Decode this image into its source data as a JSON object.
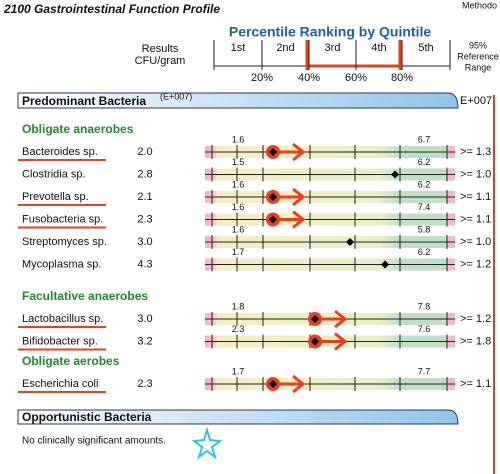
{
  "header": {
    "title": "2100 Gastrointestinal Function Profile",
    "method": "Methodo",
    "results_label": [
      "Results",
      "CFU/gram"
    ],
    "percentile_title": "Percentile Ranking by Quintile",
    "quintiles": [
      "1st",
      "2nd",
      "3rd",
      "4th",
      "5th"
    ],
    "percents": [
      "20%",
      "40%",
      "60%",
      "80%"
    ],
    "reference_label": [
      "95%",
      "Reference",
      "Range"
    ]
  },
  "section": {
    "title": "Predominant Bacteria",
    "unit": "(E+007)",
    "right_unit": "E+007",
    "groups": [
      {
        "title": "Obligate anaerobes",
        "rows": [
          {
            "name": "Bacteroides sp.",
            "result": "2.0",
            "low": "1.6",
            "high": "6.7",
            "range": ">= 1.3"
          },
          {
            "name": "Clostridia sp.",
            "result": "2.8",
            "low": "1.5",
            "high": "6.2",
            "range": ">= 1.0"
          },
          {
            "name": "Prevotella sp.",
            "result": "2.1",
            "low": "1.6",
            "high": "6.2",
            "range": ">= 1.1"
          },
          {
            "name": "Fusobacteria sp.",
            "result": "2.3",
            "low": "1.6",
            "high": "7.4",
            "range": ">= 1.1"
          },
          {
            "name": "Streptomyces sp.",
            "result": "3.0",
            "low": "1.6",
            "high": "5.8",
            "range": ">= 1.0"
          },
          {
            "name": "Mycoplasma sp.",
            "result": "4.3",
            "low": "1.7",
            "high": "6.2",
            "range": ">= 1.2"
          }
        ]
      },
      {
        "title": "Facultative anaerobes",
        "rows": [
          {
            "name": "Lactobacillus sp.",
            "result": "3.0",
            "low": "1.8",
            "high": "7.8",
            "range": ">= 1.2"
          },
          {
            "name": "Bifidobacter sp.",
            "result": "3.2",
            "low": "2.3",
            "high": "7.6",
            "range": ">= 1.8"
          }
        ]
      },
      {
        "title": "Obligate aerobes",
        "rows": [
          {
            "name": "Escherichia coli",
            "result": "2.3",
            "low": "1.7",
            "high": "7.7",
            "range": ">= 1.1"
          }
        ]
      }
    ]
  },
  "opportunistic": {
    "title": "Opportunistic Bacteria",
    "note": "No clinically significant amounts."
  }
}
